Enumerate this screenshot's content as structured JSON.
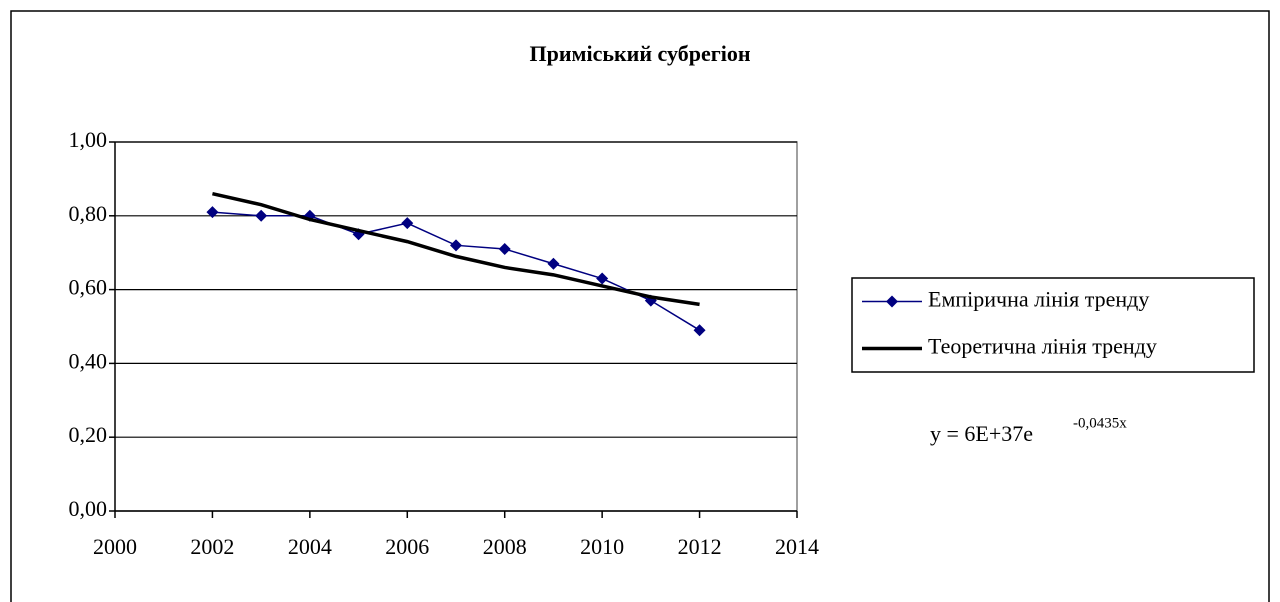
{
  "chart_data": {
    "type": "line",
    "title": "Приміський субрегіон",
    "x": [
      2002,
      2003,
      2004,
      2005,
      2006,
      2007,
      2008,
      2009,
      2010,
      2011,
      2012
    ],
    "series": [
      {
        "name": "Емпірична лінія тренду",
        "color": "#000080",
        "marker": "diamond",
        "values": [
          0.81,
          0.8,
          0.8,
          0.75,
          0.78,
          0.72,
          0.71,
          0.67,
          0.63,
          0.57,
          0.49
        ]
      },
      {
        "name": "Теоретична лінія тренду",
        "color": "#000000",
        "values": [
          0.86,
          0.83,
          0.79,
          0.76,
          0.73,
          0.69,
          0.66,
          0.64,
          0.61,
          0.58,
          0.56
        ]
      }
    ],
    "xlim": [
      2000,
      2014
    ],
    "xticks": [
      2000,
      2002,
      2004,
      2006,
      2008,
      2010,
      2012,
      2014
    ],
    "ylim": [
      0,
      1
    ],
    "yticks": [
      {
        "value": 0,
        "label": "0,00"
      },
      {
        "value": 0.2,
        "label": "0,20"
      },
      {
        "value": 0.4,
        "label": "0,40"
      },
      {
        "value": 0.6,
        "label": "0,60"
      },
      {
        "value": 0.8,
        "label": "0,80"
      },
      {
        "value": 1,
        "label": "1,00"
      }
    ],
    "grid": true,
    "legend": "right",
    "equation": {
      "base": "y = 6E+37e",
      "exponent": "-0,0435x"
    }
  }
}
